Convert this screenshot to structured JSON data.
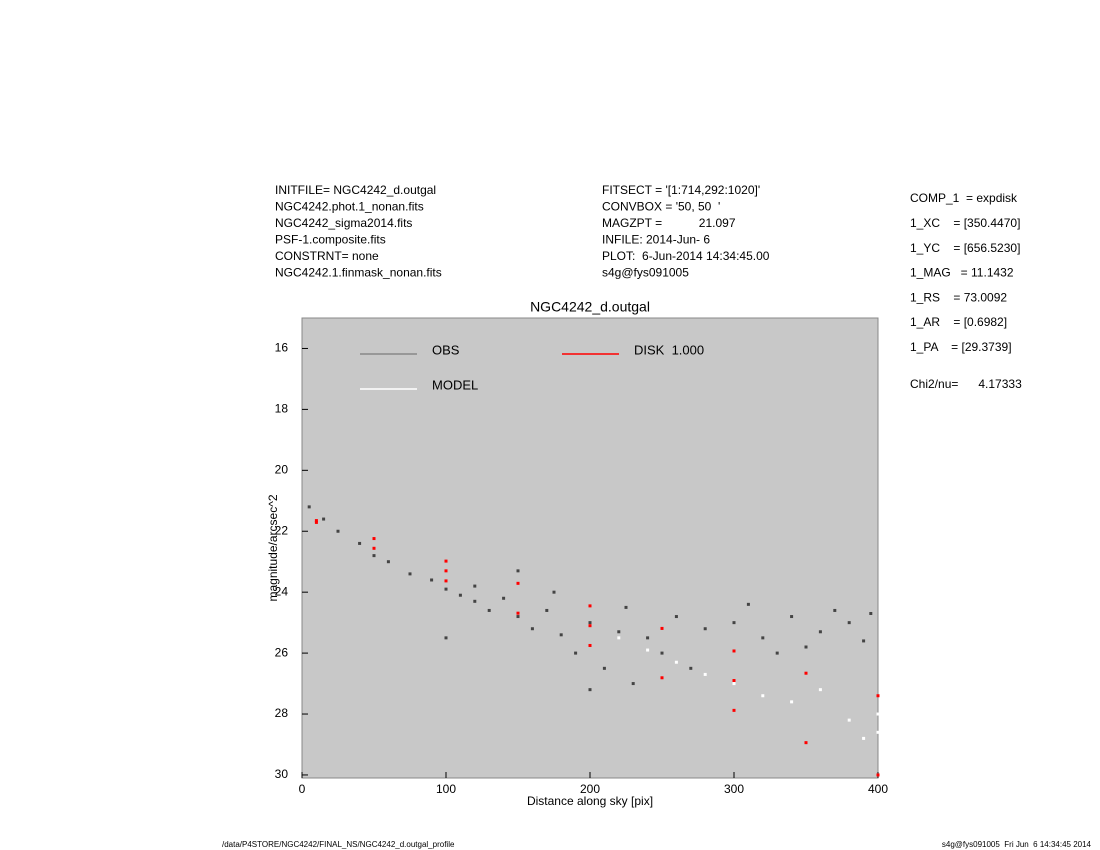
{
  "header": {
    "left": [
      "INITFILE= NGC4242_d.outgal",
      "NGC4242.phot.1_nonan.fits",
      "NGC4242_sigma2014.fits",
      "PSF-1.composite.fits",
      "CONSTRNT= none",
      "NGC4242.1.finmask_nonan.fits"
    ],
    "middle": [
      "FITSECT = '[1:714,292:1020]'",
      "CONVBOX = '50, 50  '",
      "MAGZPT =           21.097",
      "INFILE: 2014-Jun- 6",
      "PLOT:  6-Jun-2014 14:34:45.00",
      "s4g@fys091005"
    ],
    "right": [
      "COMP_1  = expdisk",
      "1_XC    = [350.4470]",
      "1_YC    = [656.5230]",
      "1_MAG   = 11.1432",
      "1_RS    = 73.0092",
      "1_AR    = [0.6982]",
      "1_PA    = [29.3739]",
      "Chi2/nu=      4.17333"
    ]
  },
  "footer": {
    "left": "/data/P4STORE/NGC4242/FINAL_NS/NGC4242_d.outgal_profile",
    "right": "s4g@fys091005  Fri Jun  6 14:34:45 2014"
  },
  "chart_data": {
    "type": "scatter",
    "title": "NGC4242_d.outgal",
    "x_label": "Distance along sky [pix]",
    "y_label": "magnitude/arcsec^2",
    "xlim": [
      0,
      400
    ],
    "xticks": [
      0,
      100,
      200,
      300,
      400
    ],
    "ylim": [
      30.1,
      15
    ],
    "yticks": [
      16,
      18,
      20,
      22,
      24,
      26,
      28,
      30
    ],
    "background": "#c8c8c8",
    "series": [
      {
        "name": "OBS",
        "color": "#444444",
        "legend_color": "#888888",
        "x": [
          5,
          15,
          25,
          40,
          50,
          60,
          75,
          90,
          100,
          110,
          120,
          130,
          140,
          150,
          160,
          170,
          180,
          190,
          200,
          210,
          220,
          230,
          240,
          250,
          260,
          270,
          280,
          300,
          320,
          340,
          360,
          380,
          395,
          150,
          100,
          200,
          120,
          175,
          225,
          310,
          330,
          350,
          370,
          390
        ],
        "values": [
          21.2,
          21.6,
          22.0,
          22.4,
          22.8,
          23.0,
          23.4,
          23.6,
          23.9,
          24.1,
          24.3,
          24.6,
          24.2,
          24.8,
          25.2,
          24.6,
          25.4,
          26.0,
          25.0,
          26.5,
          25.3,
          27.0,
          25.5,
          26.0,
          24.8,
          26.5,
          25.2,
          25.0,
          25.5,
          24.8,
          25.3,
          25.0,
          24.7,
          23.3,
          25.5,
          27.2,
          23.8,
          24.0,
          24.5,
          24.4,
          26.0,
          25.8,
          24.6,
          25.6
        ]
      },
      {
        "name": "MODEL",
        "color": "#ffffff",
        "x": [
          220,
          240,
          260,
          280,
          300,
          320,
          340,
          360,
          380,
          390,
          400,
          400
        ],
        "values": [
          25.5,
          25.9,
          26.3,
          26.7,
          27.0,
          27.4,
          27.6,
          27.2,
          28.2,
          28.8,
          28.0,
          28.6
        ]
      },
      {
        "name": "DISK  1.000",
        "color": "#ff0000",
        "x": [
          10,
          50,
          100,
          150,
          200,
          250,
          300,
          350,
          400,
          10,
          50,
          100,
          150,
          200,
          250,
          300,
          350,
          400,
          100,
          200,
          300
        ],
        "values": [
          21.65,
          22.24,
          22.98,
          23.71,
          24.45,
          25.19,
          25.93,
          26.66,
          27.4,
          21.71,
          22.56,
          23.63,
          24.69,
          25.75,
          26.81,
          27.88,
          28.94,
          30.0,
          23.3,
          25.1,
          26.9
        ]
      }
    ]
  }
}
